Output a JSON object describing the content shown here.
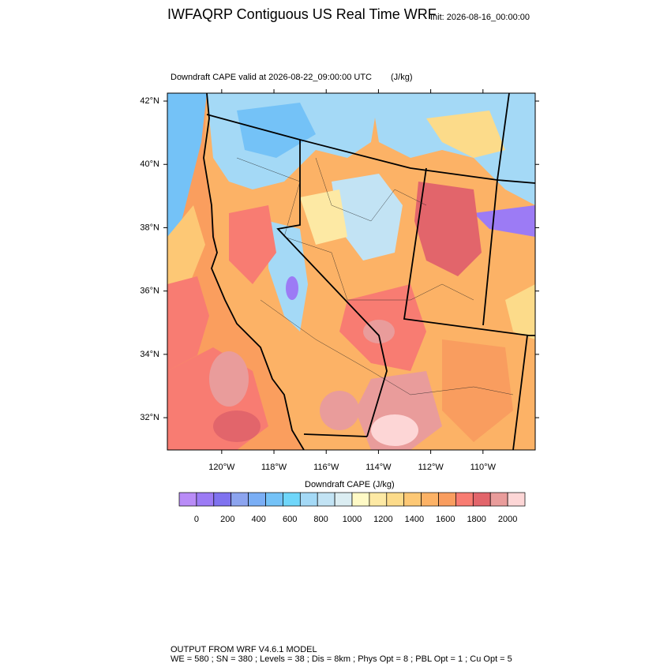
{
  "header": {
    "title": "IWFAQRP Contiguous US Real Time WRF",
    "init": "Init: 2026-08-16_00:00:00"
  },
  "map": {
    "subtitle": "Downdraft CAPE valid at 2026-08-22_09:00:00 UTC",
    "units": "(J/kg)",
    "lon_range": [
      -122.08,
      -108.0
    ],
    "lat_range": [
      30.98,
      42.25
    ],
    "lat_ticks": [
      {
        "value": 42,
        "label": "42°N"
      },
      {
        "value": 40,
        "label": "40°N"
      },
      {
        "value": 38,
        "label": "38°N"
      },
      {
        "value": 36,
        "label": "36°N"
      },
      {
        "value": 34,
        "label": "34°N"
      },
      {
        "value": 32,
        "label": "32°N"
      }
    ],
    "lon_ticks": [
      {
        "value": -120,
        "label": "120°W"
      },
      {
        "value": -118,
        "label": "118°W"
      },
      {
        "value": -116,
        "label": "116°W"
      },
      {
        "value": -114,
        "label": "114°W"
      },
      {
        "value": -112,
        "label": "112°W"
      },
      {
        "value": -110,
        "label": "110°W"
      }
    ]
  },
  "colorbar": {
    "title": "Downdraft CAPE  (J/kg)",
    "colors": [
      "#b98cf7",
      "#9c7bf5",
      "#7f72ef",
      "#8ca4ef",
      "#7aaef5",
      "#74c2f7",
      "#6fd6fa",
      "#a4d9f6",
      "#c2e3f4",
      "#dbedf2",
      "#fffac6",
      "#fde9a4",
      "#fcdb8a",
      "#fdc875",
      "#fcb266",
      "#f99d5f",
      "#f87c72",
      "#e2656b",
      "#e99c9b",
      "#fdd6d6"
    ],
    "ticks": [
      0,
      200,
      400,
      600,
      800,
      1000,
      1200,
      1400,
      1600,
      1800,
      2000
    ]
  },
  "footer": {
    "line1": "OUTPUT FROM WRF V4.6.1 MODEL",
    "line2": "WE = 580 ; SN = 380 ; Levels = 38 ; Dis = 8km ; Phys Opt = 8 ; PBL Opt = 1 ; Cu Opt = 5"
  }
}
